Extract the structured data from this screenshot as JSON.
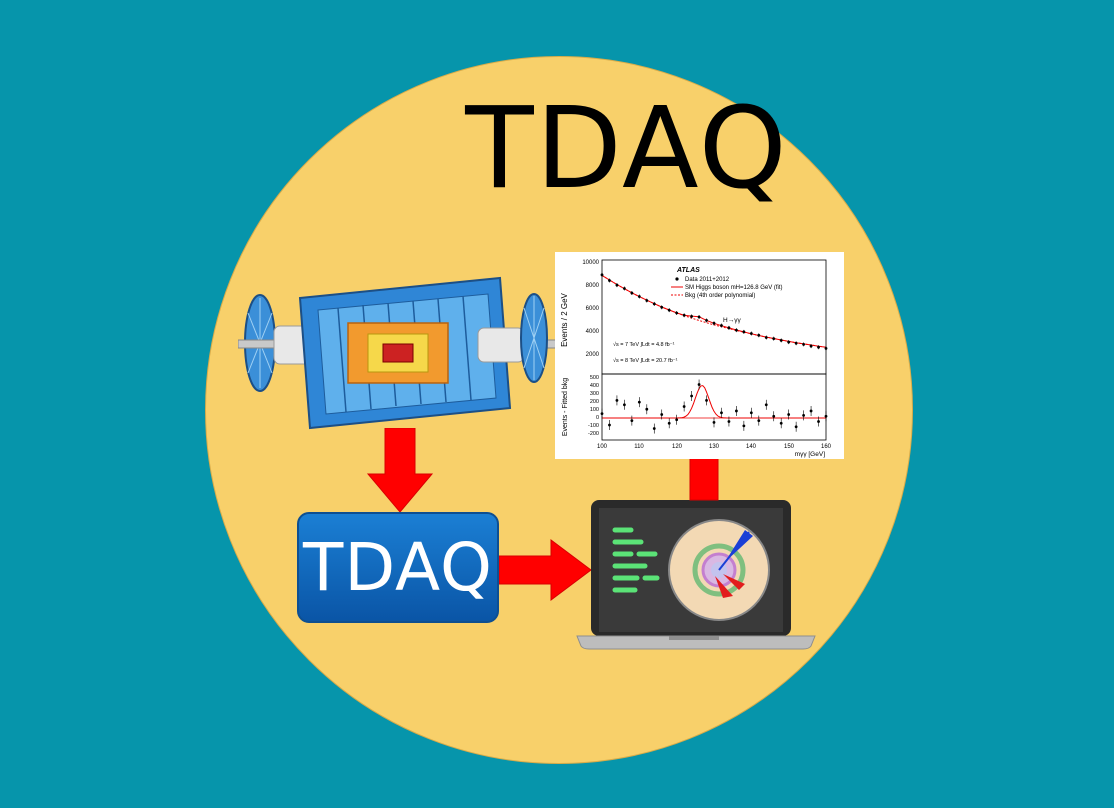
{
  "title": "TDAQ",
  "box_label": "TDAQ",
  "colors": {
    "background": "#0695ab",
    "circle": "#f8d06a",
    "arrow": "#ff0000",
    "box": "#1666c2"
  },
  "icons": [
    "detector-icon",
    "laptop-icon",
    "event-display-icon",
    "arrow-icon"
  ],
  "plot": {
    "top_ylabel": "Events / 2 GeV",
    "bottom_ylabel": "Events - Fitted bkg",
    "xlabel": "mγγ [GeV]",
    "experiment": "ATLAS",
    "legend": [
      "Data 2011+2012",
      "SM Higgs boson mH=126.8 GeV (fit)",
      "Bkg (4th order polynomial)"
    ],
    "channel": "H→γγ",
    "lumi": [
      "√s = 7 TeV ∫Ldt = 4.8 fb⁻¹",
      "√s = 8 TeV ∫Ldt = 20.7 fb⁻¹"
    ],
    "top_yticks": [
      "10000",
      "8000",
      "6000",
      "4000",
      "2000"
    ],
    "bottom_yticks": [
      "500",
      "400",
      "300",
      "200",
      "100",
      "0",
      "-100",
      "-200"
    ],
    "xticks": [
      "100",
      "110",
      "120",
      "130",
      "140",
      "150",
      "160"
    ]
  },
  "chart_data": {
    "type": "scatter",
    "x": [
      100,
      102,
      104,
      106,
      108,
      110,
      112,
      114,
      116,
      118,
      120,
      122,
      124,
      126,
      128,
      130,
      132,
      134,
      136,
      138,
      140,
      142,
      144,
      146,
      148,
      150,
      152,
      154,
      156,
      158,
      160
    ],
    "series": [
      {
        "name": "Data 2011+2012",
        "values": [
          8700,
          8200,
          7800,
          7500,
          7100,
          6800,
          6450,
          6150,
          5850,
          5600,
          5350,
          5150,
          5050,
          5000,
          4700,
          4450,
          4250,
          4050,
          3850,
          3700,
          3550,
          3400,
          3200,
          3100,
          2950,
          2800,
          2700,
          2600,
          2450,
          2350,
          2250
        ]
      },
      {
        "name": "SM Higgs boson mH=126.8 GeV (fit)",
        "values": [
          8650,
          8250,
          7850,
          7480,
          7120,
          6790,
          6470,
          6170,
          5880,
          5610,
          5360,
          5160,
          5080,
          5020,
          4700,
          4450,
          4240,
          4040,
          3860,
          3690,
          3530,
          3380,
          3240,
          3110,
          2980,
          2860,
          2750,
          2640,
          2540,
          2440,
          2350
        ]
      },
      {
        "name": "Bkg (4th order polynomial)",
        "values": [
          8650,
          8250,
          7850,
          7480,
          7120,
          6790,
          6470,
          6170,
          5880,
          5610,
          5360,
          5120,
          4900,
          4690,
          4500,
          4310,
          4140,
          3980,
          3820,
          3670,
          3530,
          3380,
          3240,
          3110,
          2980,
          2860,
          2750,
          2640,
          2540,
          2440,
          2350
        ]
      }
    ],
    "residuals": {
      "name": "Events - Fitted bkg",
      "x": [
        100,
        102,
        104,
        106,
        108,
        110,
        112,
        114,
        116,
        118,
        120,
        122,
        124,
        126,
        128,
        130,
        132,
        134,
        136,
        138,
        140,
        142,
        144,
        146,
        148,
        150,
        152,
        154,
        156,
        158,
        160
      ],
      "values": [
        50,
        -80,
        200,
        150,
        -30,
        180,
        100,
        -120,
        40,
        -60,
        -20,
        130,
        250,
        380,
        200,
        -50,
        60,
        -40,
        80,
        -90,
        60,
        -30,
        150,
        20,
        -60,
        40,
        -100,
        30,
        80,
        -40,
        20
      ]
    },
    "xlabel": "mγγ [GeV]",
    "ylabel": "Events / 2 GeV",
    "xlim": [
      100,
      160
    ],
    "ylim": [
      0,
      10000
    ],
    "residual_ylim": [
      -250,
      500
    ]
  }
}
